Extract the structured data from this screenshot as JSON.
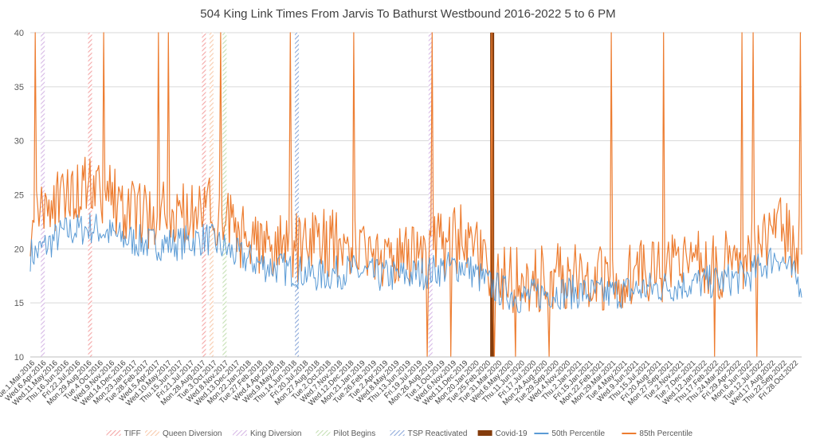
{
  "chart_data": {
    "type": "line",
    "title": "504 King Link Times From Jarvis To Bathurst Westbound 2016-2022 5 to 6 PM",
    "xlabel": "",
    "ylabel": "",
    "ylim": [
      10,
      40
    ],
    "yticks": [
      10,
      15,
      20,
      25,
      30,
      35,
      40
    ],
    "xlim": [
      "2016-03-01",
      "2022-11-30"
    ],
    "grid": true,
    "legend_position": "bottom",
    "x_tick_labels": [
      "Tue.1.Mar.2016",
      "Wed.6.Apr.2016",
      "Wed.11.May.2016",
      "Thu.16.Jun.2016",
      "Fri.22.Jul.2016",
      "Mon.29.Aug.2016",
      "Tue.4.Oct.2016",
      "Wed.9.Nov.2016",
      "Wed.14.Dec.2016",
      "Mon.23.Jan.2017",
      "Tue.28.Feb.2017",
      "Wed.5.Apr.2017",
      "Wed.10.May.2017",
      "Thu.15.Jun.2017",
      "Fri.21.Jul.2017",
      "Mon.28.Aug.2017",
      "Tue.3.Oct.2017",
      "Wed.8.Nov.2017",
      "Wed.13.Dec.2017",
      "Mon.22.Jan.2018",
      "Tue.27.Feb.2018",
      "Wed.4.Apr.2018",
      "Wed.9.May.2018",
      "Thu.14.Jun.2018",
      "Fri.20.Jul.2018",
      "Mon.27.Aug.2018",
      "Tue.2.Oct.2018",
      "Wed.7.Nov.2018",
      "Wed.12.Dec.2018",
      "Mon.21.Jan.2019",
      "Tue.26.Feb.2019",
      "Tue.2.Apr.2019",
      "Wed.8.May.2019",
      "Thu.13.Jun.2019",
      "Fri.19.Jul.2019",
      "Mon.26.Aug.2019",
      "Tue.1.Oct.2019",
      "Wed.6.Nov.2019",
      "Wed.11.Dec.2019",
      "Mon.20.Jan.2020",
      "Tue.25.Feb.2020",
      "Tue.31.Mar.2020",
      "Wed.6.May.2020",
      "Thu.11.Jun.2020",
      "Fri.17.Jul.2020",
      "Mon.24.Aug.2020",
      "Tue.29.Sep.2020",
      "Wed.4.Nov.2020",
      "Thu.2.Jan.2021",
      "Fri.15.Jan.2021",
      "Mon.22.Feb.2021",
      "Mon.29.Mar.2021",
      "Tue.4.May.2021",
      "Wed.9.Jun.2021",
      "Thu.15.Jul.2021",
      "Fri.20.Aug.2021",
      "Mon.27.Sep.2021",
      "Tue.2.Nov.2021",
      "Tue.7.Dec.2021",
      "Wed.12.Jan.2022",
      "Thu.17.Feb.2022",
      "Thu.24.Mar.2022",
      "Fri.29.Apr.2022",
      "Mon.6.Jun.2022",
      "Tue.12.Jul.2022",
      "Wed.17.Aug.2022",
      "Thu.22.Sep.2022",
      "Fri.28.Oct.2022"
    ],
    "event_markers": [
      {
        "name": "TIFF",
        "color": "#f4a7a7",
        "hatch": true,
        "x": [
          "2016-09-08",
          "2017-09-07"
        ]
      },
      {
        "name": "Queen Diversion",
        "color": "#f8cbad",
        "hatch": true,
        "x": [
          "2017-10-01"
        ]
      },
      {
        "name": "King Diversion",
        "color": "#d7b9e6",
        "hatch": true,
        "x": [
          "2016-04-10",
          "2019-09-01"
        ]
      },
      {
        "name": "Pilot Begins",
        "color": "#c5e0b4",
        "hatch": true,
        "x": [
          "2017-11-12"
        ]
      },
      {
        "name": "TSP Reactivated",
        "color": "#8eaadb",
        "hatch": true,
        "x": [
          "2018-07-01"
        ]
      },
      {
        "name": "Covid-19",
        "color": "#843c0c",
        "hatch": false,
        "x": [
          "2020-03-16"
        ]
      }
    ],
    "series": [
      {
        "name": "50th Percentile",
        "color": "#5b9bd5",
        "x": [
          "2016-03",
          "2016-06",
          "2016-09",
          "2016-12",
          "2017-03",
          "2017-06",
          "2017-09",
          "2017-12",
          "2018-03",
          "2018-06",
          "2018-09",
          "2018-12",
          "2019-03",
          "2019-06",
          "2019-09",
          "2019-12",
          "2020-03",
          "2020-06",
          "2020-09",
          "2020-12",
          "2021-03",
          "2021-06",
          "2021-09",
          "2021-12",
          "2022-03",
          "2022-06",
          "2022-09",
          "2022-11"
        ],
        "values": [
          19.5,
          21.5,
          22.0,
          21.0,
          20.5,
          20.5,
          21.0,
          19.5,
          18.5,
          18.0,
          17.5,
          18.0,
          17.5,
          17.5,
          18.0,
          18.5,
          16.5,
          15.5,
          16.0,
          16.0,
          15.8,
          16.2,
          16.5,
          16.8,
          17.0,
          17.5,
          19.5,
          17.0
        ]
      },
      {
        "name": "85th Percentile",
        "color": "#ed7d31",
        "x": [
          "2016-03",
          "2016-06",
          "2016-09",
          "2016-12",
          "2017-03",
          "2017-06",
          "2017-09",
          "2017-12",
          "2018-03",
          "2018-06",
          "2018-09",
          "2018-12",
          "2019-03",
          "2019-06",
          "2019-09",
          "2019-12",
          "2020-03",
          "2020-06",
          "2020-09",
          "2020-12",
          "2021-03",
          "2021-06",
          "2021-09",
          "2021-12",
          "2022-03",
          "2022-06",
          "2022-09",
          "2022-11"
        ],
        "values": [
          22.5,
          25.0,
          26.0,
          24.0,
          23.0,
          23.5,
          24.0,
          21.5,
          20.5,
          20.0,
          20.5,
          20.5,
          19.5,
          19.5,
          20.0,
          21.0,
          18.0,
          17.0,
          17.5,
          17.5,
          17.0,
          17.5,
          18.0,
          18.5,
          18.5,
          19.5,
          22.0,
          20.0
        ]
      }
    ]
  }
}
